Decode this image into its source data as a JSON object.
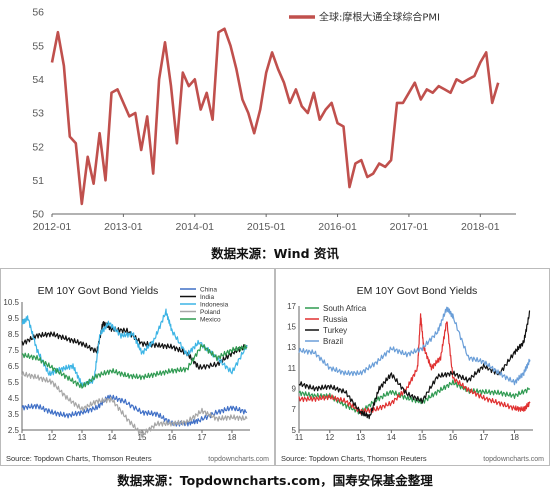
{
  "caption_top": "数据来源：Wind 资讯",
  "caption_bottom": "数据来源：Topdowncharts.com，国寿安保基金整理",
  "chart_data": [
    {
      "type": "line",
      "title": "",
      "legend_position": "top-right",
      "ylim": [
        50,
        56
      ],
      "yticks": [
        "56",
        "55",
        "54",
        "53",
        "52",
        "51",
        "50"
      ],
      "xlim": [
        2012.0,
        2018.5
      ],
      "xticks": [
        {
          "label": "2012-01",
          "x": 2012.0
        },
        {
          "label": "2013-01",
          "x": 2013.0
        },
        {
          "label": "2014-01",
          "x": 2014.0
        },
        {
          "label": "2015-01",
          "x": 2015.0
        },
        {
          "label": "2016-01",
          "x": 2016.0
        },
        {
          "label": "2017-01",
          "x": 2017.0
        },
        {
          "label": "2018-01",
          "x": 2018.0
        }
      ],
      "series": [
        {
          "name": "全球:摩根大通全球综合PMI",
          "color": "#c0504d",
          "x": [
            2012.0,
            2012.083,
            2012.167,
            2012.25,
            2012.333,
            2012.417,
            2012.5,
            2012.583,
            2012.667,
            2012.75,
            2012.833,
            2012.917,
            2013.0,
            2013.083,
            2013.167,
            2013.25,
            2013.333,
            2013.417,
            2013.5,
            2013.583,
            2013.667,
            2013.75,
            2013.833,
            2013.917,
            2014.0,
            2014.083,
            2014.167,
            2014.25,
            2014.333,
            2014.417,
            2014.5,
            2014.583,
            2014.667,
            2014.75,
            2014.833,
            2014.917,
            2015.0,
            2015.083,
            2015.167,
            2015.25,
            2015.333,
            2015.417,
            2015.5,
            2015.583,
            2015.667,
            2015.75,
            2015.833,
            2015.917,
            2016.0,
            2016.083,
            2016.167,
            2016.25,
            2016.333,
            2016.417,
            2016.5,
            2016.583,
            2016.667,
            2016.75,
            2016.833,
            2016.917,
            2017.0,
            2017.083,
            2017.167,
            2017.25,
            2017.333,
            2017.417,
            2017.5,
            2017.583,
            2017.667,
            2017.75,
            2017.833,
            2017.917,
            2018.0,
            2018.083,
            2018.167,
            2018.25
          ],
          "values": [
            54.5,
            55.4,
            54.4,
            52.3,
            52.1,
            50.3,
            51.7,
            50.9,
            52.4,
            51.0,
            53.6,
            53.7,
            53.3,
            52.9,
            53.0,
            51.9,
            52.9,
            51.2,
            54.0,
            55.1,
            53.8,
            52.1,
            54.2,
            53.8,
            54.0,
            53.1,
            53.6,
            52.8,
            55.4,
            55.5,
            55.0,
            54.3,
            53.4,
            53.0,
            52.4,
            53.1,
            54.2,
            54.8,
            54.3,
            53.9,
            53.3,
            53.7,
            53.2,
            53.0,
            53.6,
            52.8,
            53.1,
            53.3,
            52.7,
            52.6,
            50.8,
            51.5,
            51.6,
            51.1,
            51.2,
            51.5,
            51.4,
            51.6,
            53.3,
            53.3,
            53.6,
            53.9,
            53.4,
            53.7,
            53.6,
            53.8,
            53.7,
            53.6,
            54.0,
            53.9,
            54.0,
            54.1,
            54.5,
            54.8,
            53.3,
            53.9
          ]
        }
      ]
    },
    {
      "type": "line",
      "title": "EM 10Y Govt Bond Yields",
      "source": "Source: Topdown Charts, Thomson Reuters",
      "watermark": "topdowncharts.com",
      "legend_position": "top-right",
      "ylim": [
        2.5,
        10.5
      ],
      "yticks": [
        "10.5",
        "9.5",
        "8.5",
        "7.5",
        "6.5",
        "5.5",
        "4.5",
        "3.5",
        "2.5"
      ],
      "xlim": [
        2011.0,
        2018.6
      ],
      "xticks": [
        {
          "label": "11",
          "x": 2011
        },
        {
          "label": "12",
          "x": 2012
        },
        {
          "label": "13",
          "x": 2013
        },
        {
          "label": "14",
          "x": 2014
        },
        {
          "label": "15",
          "x": 2015
        },
        {
          "label": "16",
          "x": 2016
        },
        {
          "label": "17",
          "x": 2017
        },
        {
          "label": "18",
          "x": 2018
        }
      ],
      "series": [
        {
          "name": "China",
          "color": "#3f6fc6",
          "x": [
            2011.0,
            2011.5,
            2012.0,
            2012.5,
            2013.0,
            2013.5,
            2013.9,
            2014.4,
            2015.0,
            2015.5,
            2016.0,
            2016.5,
            2016.9,
            2017.5,
            2018.0,
            2018.5
          ],
          "values": [
            3.9,
            4.0,
            3.6,
            3.4,
            3.6,
            3.9,
            4.6,
            4.3,
            3.6,
            3.5,
            2.9,
            2.9,
            3.1,
            3.6,
            3.9,
            3.6
          ]
        },
        {
          "name": "India",
          "color": "#111111",
          "x": [
            2011.0,
            2011.5,
            2012.0,
            2012.5,
            2013.0,
            2013.5,
            2013.7,
            2014.0,
            2014.5,
            2015.0,
            2015.5,
            2016.0,
            2016.5,
            2016.9,
            2017.5,
            2018.0,
            2018.5
          ],
          "values": [
            7.9,
            8.4,
            8.5,
            8.2,
            7.9,
            7.4,
            9.2,
            8.8,
            8.7,
            7.9,
            7.8,
            7.7,
            7.3,
            6.4,
            6.6,
            7.3,
            7.8
          ]
        },
        {
          "name": "Indonesia",
          "color": "#3cb4e5",
          "x": [
            2011.0,
            2011.2,
            2011.5,
            2011.9,
            2012.3,
            2012.7,
            2013.0,
            2013.4,
            2013.6,
            2013.9,
            2014.3,
            2014.7,
            2015.0,
            2015.4,
            2015.8,
            2016.0,
            2016.5,
            2016.9,
            2017.5,
            2018.0,
            2018.5
          ],
          "values": [
            9.2,
            9.5,
            7.5,
            6.0,
            6.3,
            6.5,
            5.3,
            5.6,
            8.5,
            9.2,
            8.4,
            8.5,
            7.3,
            8.1,
            9.9,
            8.7,
            7.2,
            8.0,
            7.0,
            6.1,
            7.8
          ]
        },
        {
          "name": "Poland",
          "color": "#a6a6a6",
          "x": [
            2011.0,
            2011.5,
            2012.0,
            2012.5,
            2013.0,
            2013.5,
            2014.0,
            2014.5,
            2015.0,
            2015.5,
            2016.0,
            2016.5,
            2017.0,
            2017.5,
            2018.0,
            2018.5
          ],
          "values": [
            6.0,
            5.8,
            5.5,
            4.5,
            3.8,
            4.3,
            4.4,
            3.2,
            2.2,
            2.9,
            2.9,
            3.0,
            3.7,
            3.2,
            3.3,
            3.2
          ]
        },
        {
          "name": "Mexico",
          "color": "#2f9a51",
          "x": [
            2011.0,
            2011.5,
            2012.0,
            2012.5,
            2013.0,
            2013.5,
            2014.0,
            2014.5,
            2015.0,
            2015.5,
            2016.0,
            2016.5,
            2017.0,
            2017.5,
            2018.0,
            2018.5
          ],
          "values": [
            7.2,
            7.0,
            6.4,
            5.8,
            5.2,
            5.9,
            6.2,
            5.9,
            5.8,
            6.0,
            6.2,
            6.3,
            7.8,
            7.0,
            7.5,
            7.7
          ]
        }
      ]
    },
    {
      "type": "line",
      "title": "EM 10Y Govt Bond Yields",
      "source": "Source: Topdown Charts, Thomson Reuters",
      "watermark": "topdowncharts.com",
      "legend_position": "top-left",
      "ylim": [
        5,
        17
      ],
      "yticks": [
        "17",
        "15",
        "13",
        "11",
        "9",
        "7",
        "5"
      ],
      "xlim": [
        2011.0,
        2018.6
      ],
      "xticks": [
        {
          "label": "11",
          "x": 2011
        },
        {
          "label": "12",
          "x": 2012
        },
        {
          "label": "13",
          "x": 2013
        },
        {
          "label": "14",
          "x": 2014
        },
        {
          "label": "15",
          "x": 2015
        },
        {
          "label": "16",
          "x": 2016
        },
        {
          "label": "17",
          "x": 2017
        },
        {
          "label": "18",
          "x": 2018
        }
      ],
      "series": [
        {
          "name": "South Africa",
          "color": "#2f9a51",
          "x": [
            2011.0,
            2011.5,
            2012.0,
            2012.5,
            2013.0,
            2013.5,
            2014.0,
            2014.5,
            2015.0,
            2015.5,
            2016.0,
            2016.5,
            2017.0,
            2017.5,
            2018.0,
            2018.5
          ],
          "values": [
            8.6,
            8.3,
            8.3,
            7.4,
            6.7,
            7.9,
            8.7,
            8.1,
            7.7,
            8.7,
            9.6,
            8.8,
            8.7,
            8.6,
            8.3,
            9.0
          ]
        },
        {
          "name": "Russia",
          "color": "#e03131",
          "x": [
            2011.0,
            2011.5,
            2012.0,
            2012.5,
            2013.0,
            2013.5,
            2014.0,
            2014.5,
            2014.85,
            2014.95,
            2015.05,
            2015.3,
            2015.6,
            2015.8,
            2016.0,
            2016.5,
            2017.0,
            2017.5,
            2018.0,
            2018.3,
            2018.5
          ],
          "values": [
            8.0,
            8.0,
            8.2,
            7.8,
            6.8,
            7.0,
            7.6,
            9.0,
            11.0,
            16.1,
            13.0,
            11.0,
            12.0,
            15.6,
            10.0,
            8.9,
            8.1,
            7.6,
            7.1,
            7.0,
            7.6
          ]
        },
        {
          "name": "Turkey",
          "color": "#111111",
          "x": [
            2011.0,
            2011.5,
            2012.0,
            2012.5,
            2013.0,
            2013.3,
            2013.6,
            2014.0,
            2014.5,
            2015.0,
            2015.5,
            2016.0,
            2016.5,
            2017.0,
            2017.5,
            2018.0,
            2018.3,
            2018.5
          ],
          "values": [
            9.5,
            9.0,
            9.2,
            8.7,
            6.7,
            6.3,
            9.0,
            10.4,
            8.5,
            7.8,
            10.2,
            10.5,
            9.8,
            11.2,
            10.4,
            12.5,
            13.5,
            16.5
          ]
        },
        {
          "name": "Brazil",
          "color": "#6a9ed8",
          "x": [
            2011.0,
            2011.5,
            2012.0,
            2012.5,
            2013.0,
            2013.5,
            2014.0,
            2014.5,
            2015.0,
            2015.5,
            2015.8,
            2016.0,
            2016.5,
            2017.0,
            2017.5,
            2018.0,
            2018.3,
            2018.5
          ],
          "values": [
            12.7,
            12.5,
            11.0,
            10.5,
            10.5,
            11.5,
            12.9,
            12.3,
            12.9,
            14.5,
            16.8,
            16.0,
            12.0,
            11.6,
            10.5,
            9.6,
            10.5,
            11.8
          ]
        }
      ]
    }
  ]
}
